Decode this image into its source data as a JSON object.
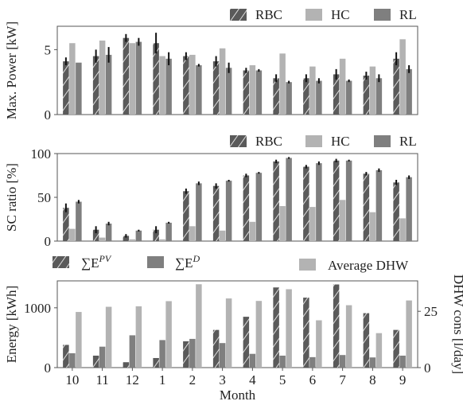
{
  "colors": {
    "rbc": "#5a5a5a",
    "hc": "#b3b3b3",
    "rl": "#7f7f7f",
    "epv": "#5a5a5a",
    "ed": "#7f7f7f",
    "dhw": "#b3b3b3",
    "err": "#111111"
  },
  "chart_data": [
    {
      "type": "bar",
      "categories": [
        "10",
        "11",
        "12",
        "1",
        "2",
        "3",
        "4",
        "5",
        "6",
        "7",
        "8",
        "9"
      ],
      "ylabel": "Max. Power [kW]",
      "ylim": [
        0,
        6.8
      ],
      "yticks": [
        0,
        5
      ],
      "legend": [
        "RBC",
        "HC",
        "RL"
      ],
      "legend_position": "top-right",
      "series": [
        {
          "name": "RBC",
          "hatch": true,
          "values": [
            4.1,
            4.5,
            5.9,
            5.5,
            4.5,
            4.1,
            3.4,
            2.8,
            2.8,
            3.1,
            3.0,
            4.3
          ],
          "err": [
            0.3,
            0.5,
            0.3,
            0.8,
            0.3,
            0.4,
            0.2,
            0.3,
            0.3,
            0.4,
            0.3,
            0.5
          ]
        },
        {
          "name": "HC",
          "values": [
            5.5,
            5.7,
            5.5,
            4.5,
            4.6,
            5.1,
            3.8,
            4.7,
            3.7,
            4.3,
            3.7,
            5.8
          ]
        },
        {
          "name": "RL",
          "values": [
            4.0,
            4.6,
            5.6,
            4.3,
            3.8,
            3.6,
            3.4,
            2.5,
            2.6,
            2.6,
            2.8,
            3.5
          ],
          "err": [
            0.0,
            0.6,
            0.3,
            0.5,
            0.1,
            0.4,
            0.1,
            0.1,
            0.2,
            0.1,
            0.3,
            0.3
          ]
        }
      ]
    },
    {
      "type": "bar",
      "categories": [
        "10",
        "11",
        "12",
        "1",
        "2",
        "3",
        "4",
        "5",
        "6",
        "7",
        "8",
        "9"
      ],
      "ylabel": "SC ratio [%]",
      "ylim": [
        0,
        100
      ],
      "yticks": [
        0,
        50,
        100
      ],
      "legend": [
        "RBC",
        "HC",
        "RL"
      ],
      "legend_position": "top-right",
      "series": [
        {
          "name": "RBC",
          "hatch": true,
          "values": [
            38,
            13,
            6,
            13,
            57,
            63,
            75,
            91,
            85,
            92,
            77,
            67
          ],
          "err": [
            5,
            4,
            2,
            4,
            3,
            3,
            2,
            2,
            2,
            2,
            2,
            3
          ]
        },
        {
          "name": "HC",
          "values": [
            14,
            4,
            2,
            2,
            17,
            12,
            22,
            40,
            39,
            47,
            33,
            26
          ]
        },
        {
          "name": "RL",
          "values": [
            45,
            20,
            12,
            21,
            66,
            69,
            78,
            95,
            89,
            92,
            81,
            73
          ],
          "err": [
            2,
            2,
            1,
            1,
            2,
            1,
            1,
            1,
            2,
            1,
            2,
            2
          ]
        }
      ]
    },
    {
      "type": "bar",
      "categories": [
        "10",
        "11",
        "12",
        "1",
        "2",
        "3",
        "4",
        "5",
        "6",
        "7",
        "8",
        "9"
      ],
      "xlabel": "Month",
      "ylabel": "Energy [kWh]",
      "ylabel_right": "DHW cons [l/day]",
      "ylim": [
        0,
        1450
      ],
      "yticks": [
        0,
        1000
      ],
      "ylim_right": [
        0,
        38.5
      ],
      "yticks_right": [
        0,
        25
      ],
      "legend": [
        "∑E^PV",
        "∑E^D",
        "Average DHW"
      ],
      "legend_position": "top",
      "series": [
        {
          "name": "∑E^PV",
          "hatch": true,
          "values": [
            380,
            200,
            90,
            160,
            440,
            630,
            850,
            1340,
            1170,
            1390,
            910,
            630
          ]
        },
        {
          "name": "∑E^D",
          "values": [
            240,
            350,
            540,
            460,
            480,
            410,
            230,
            200,
            175,
            210,
            170,
            200
          ]
        },
        {
          "name": "Average DHW",
          "axis": "right",
          "values": [
            24.7,
            27.0,
            27.2,
            29.5,
            37.0,
            30.7,
            29.6,
            34.8,
            21.0,
            27.7,
            15.3,
            29.8
          ]
        }
      ]
    }
  ]
}
